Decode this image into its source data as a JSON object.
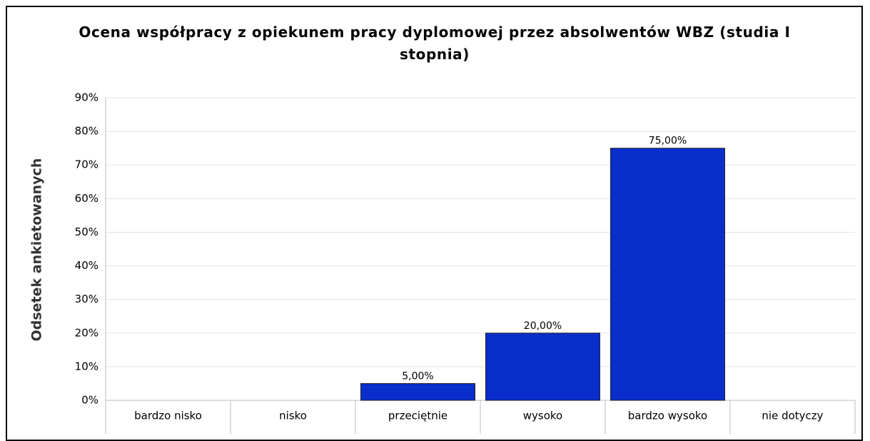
{
  "chart_data": {
    "type": "bar",
    "title": "Ocena współpracy z opiekunem pracy dyplomowej przez absolwentów WBZ (studia I stopnia)",
    "y_label": "Odsetek ankietowanych",
    "categories": [
      "bardzo nisko",
      "nisko",
      "przeciętnie",
      "wysoko",
      "bardzo wysoko",
      "nie dotyczy"
    ],
    "values": [
      0,
      0,
      5,
      20,
      75,
      0
    ],
    "value_labels": [
      null,
      null,
      "5,00%",
      "20,00%",
      "75,00%",
      null
    ],
    "color": "#0a2ecc",
    "ylim": [
      0,
      90
    ],
    "yticks": [
      {
        "value": 0,
        "label": "0%"
      },
      {
        "value": 10,
        "label": "10%"
      },
      {
        "value": 20,
        "label": "20%"
      },
      {
        "value": 30,
        "label": "30%"
      },
      {
        "value": 40,
        "label": "40%"
      },
      {
        "value": 50,
        "label": "50%"
      },
      {
        "value": 60,
        "label": "60%"
      },
      {
        "value": 70,
        "label": "70%"
      },
      {
        "value": 80,
        "label": "80%"
      },
      {
        "value": 90,
        "label": "90%"
      }
    ],
    "grid": true
  }
}
